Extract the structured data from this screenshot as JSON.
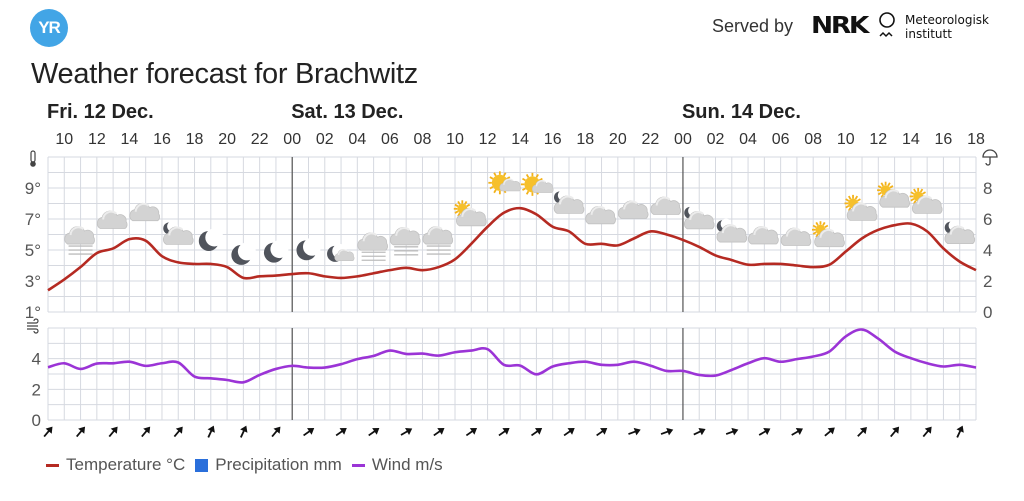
{
  "header": {
    "logo_text": "YR",
    "served_by": "Served by",
    "nrk_logo_text": "NRK",
    "met_line1": "Meteorologisk",
    "met_line2": "institutt",
    "title": "Weather forecast for Brachwitz"
  },
  "legend": [
    {
      "label": "Temperature °C",
      "color": "#b52a22",
      "kind": "line"
    },
    {
      "label": "Precipitation mm",
      "color": "#2a6fdb",
      "kind": "box"
    },
    {
      "label": "Wind m/s",
      "color": "#9b34d6",
      "kind": "line"
    }
  ],
  "colors": {
    "temperature": "#b52a22",
    "wind": "#9b34d6",
    "grid": "#d6d9e0",
    "day_separator": "#555555",
    "axis_text": "#555555"
  },
  "chart_data": {
    "type": "line",
    "title": "Weather forecast for Brachwitz",
    "time_start": "Fri 09:00",
    "time_step_hours": 1,
    "days": [
      {
        "label": "Fri. 12 Dec.",
        "start_hour_index": 0
      },
      {
        "label": "Sat. 13 Dec.",
        "start_hour_index": 15
      },
      {
        "label": "Sun. 14 Dec.",
        "start_hour_index": 39
      }
    ],
    "hour_ticks": [
      "10",
      "12",
      "14",
      "16",
      "18",
      "20",
      "22",
      "00",
      "02",
      "04",
      "06",
      "08",
      "10",
      "12",
      "14",
      "16",
      "18",
      "20",
      "22",
      "00",
      "02",
      "04",
      "06",
      "08",
      "10",
      "12",
      "14",
      "16",
      "18"
    ],
    "temperature_axis": {
      "ylim": [
        1,
        11
      ],
      "ticks": [
        1,
        3,
        5,
        7,
        9
      ],
      "tick_labels": [
        "1°",
        "3°",
        "5°",
        "7°",
        "9°"
      ],
      "icon": "thermometer-icon"
    },
    "precipitation_axis": {
      "ylim": [
        0,
        10
      ],
      "ticks": [
        0,
        2,
        4,
        6,
        8
      ],
      "tick_labels": [
        "0",
        "2",
        "4",
        "6",
        "8"
      ],
      "icon": "umbrella-icon"
    },
    "wind_axis": {
      "ylim": [
        0,
        6
      ],
      "ticks": [
        0,
        2,
        4
      ],
      "tick_labels": [
        "0",
        "2",
        "4"
      ],
      "icon": "wind-icon"
    },
    "series": [
      {
        "name": "Temperature °C",
        "values": [
          2.4,
          3.1,
          3.9,
          4.8,
          5.1,
          5.7,
          5.6,
          4.6,
          4.2,
          4.1,
          4.1,
          3.9,
          3.2,
          3.3,
          3.35,
          3.45,
          3.5,
          3.3,
          3.2,
          3.3,
          3.5,
          3.7,
          3.85,
          3.7,
          3.9,
          4.4,
          5.4,
          6.5,
          7.4,
          7.7,
          7.3,
          6.5,
          6.2,
          5.4,
          5.4,
          5.3,
          5.75,
          6.2,
          6.0,
          5.65,
          5.2,
          4.65,
          4.35,
          4.05,
          4.1,
          4.1,
          4.0,
          3.9,
          4.05,
          4.9,
          5.75,
          6.3,
          6.6,
          6.7,
          6.2,
          5.1,
          4.25,
          3.7
        ]
      },
      {
        "name": "Wind m/s",
        "values": [
          3.44,
          3.7,
          3.33,
          3.68,
          3.7,
          3.8,
          3.53,
          3.7,
          3.75,
          2.83,
          2.72,
          2.61,
          2.46,
          2.94,
          3.33,
          3.53,
          3.42,
          3.42,
          3.64,
          3.97,
          4.18,
          4.53,
          4.31,
          4.33,
          4.2,
          4.42,
          4.53,
          4.62,
          3.6,
          3.55,
          2.98,
          3.49,
          3.7,
          3.8,
          3.6,
          3.6,
          3.8,
          3.55,
          3.2,
          3.2,
          2.94,
          2.9,
          3.27,
          3.7,
          4.03,
          3.8,
          3.97,
          4.14,
          4.47,
          5.45,
          5.9,
          5.3,
          4.47,
          4.03,
          3.7,
          3.49,
          3.6,
          3.42
        ]
      },
      {
        "name": "Precipitation mm",
        "values": []
      }
    ],
    "weather_symbols": [
      {
        "hour_index": 2,
        "type": "fog"
      },
      {
        "hour_index": 4,
        "type": "cloudy"
      },
      {
        "hour_index": 6,
        "type": "cloudy"
      },
      {
        "hour_index": 8,
        "type": "partlycloudy_night"
      },
      {
        "hour_index": 10,
        "type": "clearsky_night"
      },
      {
        "hour_index": 12,
        "type": "clearsky_night"
      },
      {
        "hour_index": 14,
        "type": "clearsky_night"
      },
      {
        "hour_index": 16,
        "type": "clearsky_night"
      },
      {
        "hour_index": 18,
        "type": "fair_night"
      },
      {
        "hour_index": 20,
        "type": "fog"
      },
      {
        "hour_index": 22,
        "type": "fog"
      },
      {
        "hour_index": 24,
        "type": "fog"
      },
      {
        "hour_index": 26,
        "type": "partlycloudy_day"
      },
      {
        "hour_index": 28,
        "type": "fair_day"
      },
      {
        "hour_index": 30,
        "type": "fair_day"
      },
      {
        "hour_index": 32,
        "type": "partlycloudy_night"
      },
      {
        "hour_index": 34,
        "type": "cloudy"
      },
      {
        "hour_index": 36,
        "type": "cloudy"
      },
      {
        "hour_index": 38,
        "type": "cloudy"
      },
      {
        "hour_index": 40,
        "type": "partlycloudy_night"
      },
      {
        "hour_index": 42,
        "type": "partlycloudy_night"
      },
      {
        "hour_index": 44,
        "type": "cloudy"
      },
      {
        "hour_index": 46,
        "type": "cloudy"
      },
      {
        "hour_index": 48,
        "type": "partlycloudy_day"
      },
      {
        "hour_index": 50,
        "type": "partlycloudy_day"
      },
      {
        "hour_index": 52,
        "type": "partlycloudy_day"
      },
      {
        "hour_index": 54,
        "type": "partlycloudy_day"
      },
      {
        "hour_index": 56,
        "type": "partlycloudy_night"
      }
    ],
    "wind_arrows_deg": [
      40,
      40,
      40,
      40,
      40,
      25,
      25,
      40,
      55,
      55,
      55,
      60,
      55,
      55,
      55,
      55,
      55,
      55,
      70,
      70,
      65,
      70,
      60,
      60,
      50,
      45,
      40,
      40,
      25
    ],
    "wind_arrow_step_hours": 2
  }
}
